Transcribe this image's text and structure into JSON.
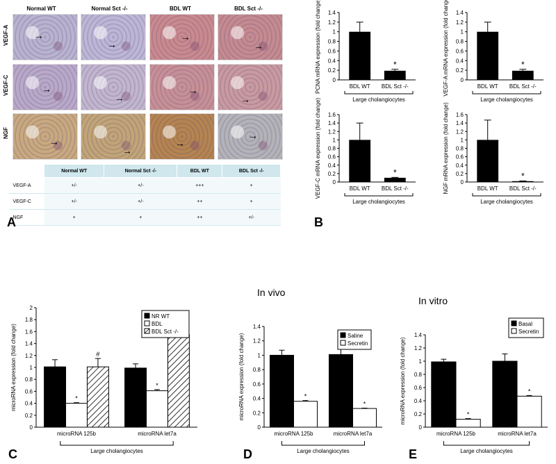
{
  "panels": {
    "A": "A",
    "B": "B",
    "C": "C",
    "D": "D",
    "E": "E"
  },
  "panel_a": {
    "columns": [
      "Normal WT",
      "Normal Sct -/-",
      "BDL WT",
      "BDL Sct -/-"
    ],
    "rows": [
      "VEGF-A",
      "VEGF-C",
      "NGF"
    ],
    "images": [
      [
        "#b9b3cf",
        "#bdb7d5",
        "#c98a8e",
        "#c58b90"
      ],
      [
        "#b9a9c8",
        "#c2b6cf",
        "#c79096",
        "#c99aa0"
      ],
      [
        "#c9a97f",
        "#c2a577",
        "#b58450",
        "#b4b3b8"
      ]
    ],
    "table": {
      "headers": [
        "",
        "Normal WT",
        "Normal Sct -/-",
        "BDL WT",
        "BDL Sct -/-"
      ],
      "rows": [
        [
          "VEGF-A",
          "+/-",
          "+/-",
          "+++",
          "+"
        ],
        [
          "VEGF-C",
          "+/-",
          "+/-",
          "++",
          "+"
        ],
        [
          "NGF",
          "+",
          "+",
          "++",
          "+/-"
        ]
      ]
    }
  },
  "chart_data": [
    {
      "panel": "B",
      "type": "bar",
      "categories": [
        "BDL WT",
        "BDL Sct -/-"
      ],
      "values": [
        1.0,
        0.19
      ],
      "errors": [
        0.2,
        0.03
      ],
      "significance": [
        "",
        "*"
      ],
      "ylabel": "PCNA mRNA expression (fold change)",
      "group_label": "Large cholangiocytes",
      "ylim": [
        0,
        1.4
      ],
      "yticks": [
        "0",
        "0.2",
        "0.4",
        "0.6",
        "0.8",
        "1",
        "1.2",
        "1.4"
      ]
    },
    {
      "panel": "B",
      "type": "bar",
      "categories": [
        "BDL WT",
        "BDL Sct -/-"
      ],
      "values": [
        1.0,
        0.19
      ],
      "errors": [
        0.2,
        0.03
      ],
      "significance": [
        "",
        "*"
      ],
      "ylabel": "VEGF-A mRNA expression (fold change)",
      "group_label": "Large cholangiocytes",
      "ylim": [
        0,
        1.4
      ],
      "yticks": [
        "0",
        "0.2",
        "0.4",
        "0.6",
        "0.8",
        "1",
        "1.2",
        "1.4"
      ]
    },
    {
      "panel": "B",
      "type": "bar",
      "categories": [
        "BDL WT",
        "BDL Sct -/-"
      ],
      "values": [
        1.0,
        0.1
      ],
      "errors": [
        0.4,
        0.01
      ],
      "significance": [
        "",
        "*"
      ],
      "ylabel": "VEGF-C mRNA expression (fold change)",
      "group_label": "Large cholangiocytes",
      "ylim": [
        0,
        1.6
      ],
      "yticks": [
        "0",
        "0.2",
        "0.4",
        "0.6",
        "0.8",
        "1",
        "1.2",
        "1.4",
        "1.6"
      ]
    },
    {
      "panel": "B",
      "type": "bar",
      "categories": [
        "BDL WT",
        "BDL Sct -/-"
      ],
      "values": [
        1.0,
        0.02
      ],
      "errors": [
        0.47,
        0.005
      ],
      "significance": [
        "",
        "*"
      ],
      "ylabel": "NGF mRNA expression (fold change)",
      "group_label": "Large cholangiocytes",
      "ylim": [
        0,
        1.6
      ],
      "yticks": [
        "0",
        "0.2",
        "0.4",
        "0.6",
        "0.8",
        "1",
        "1.2",
        "1.4",
        "1.6"
      ]
    },
    {
      "panel": "C",
      "type": "bar",
      "categories": [
        "microRNA 125b",
        "microRNA let7a"
      ],
      "series": [
        {
          "name": "NR WT",
          "values": [
            1.01,
            0.99
          ],
          "errors": [
            0.12,
            0.07
          ],
          "significance": [
            "",
            ""
          ]
        },
        {
          "name": "BDL",
          "values": [
            0.4,
            0.61
          ],
          "errors": [
            0.01,
            0.02
          ],
          "significance": [
            "*",
            "*"
          ]
        },
        {
          "name": "BDL Sct -/-",
          "values": [
            1.01,
            1.55
          ],
          "errors": [
            0.14,
            0.2
          ],
          "significance": [
            "#",
            "#"
          ]
        }
      ],
      "ylabel": "microRNA expression (fold change)",
      "group_label": "Large cholangiocytes",
      "ylim": [
        0,
        2
      ],
      "yticks": [
        "0",
        "0.2",
        "0.4",
        "0.6",
        "0.8",
        "1",
        "1.2",
        "1.4",
        "1.6",
        "1.8",
        "2"
      ],
      "legend": "top-right"
    },
    {
      "panel": "D",
      "type": "bar",
      "title": "In vivo",
      "categories": [
        "microRNA 125b",
        "microRNA let7a"
      ],
      "series": [
        {
          "name": "Saline",
          "values": [
            1.0,
            1.01
          ],
          "errors": [
            0.07,
            0.12
          ],
          "significance": [
            "",
            ""
          ]
        },
        {
          "name": "Secretin",
          "values": [
            0.36,
            0.26
          ],
          "errors": [
            0.01,
            0.005
          ],
          "significance": [
            "*",
            "*"
          ]
        }
      ],
      "ylabel": "microRNA expression (fold change)",
      "group_label": "Large cholangiocytes",
      "ylim": [
        0,
        1.4
      ],
      "yticks": [
        "0",
        "0.2",
        "0.4",
        "0.6",
        "0.8",
        "1",
        "1.2",
        "1.4"
      ],
      "legend": "top-right"
    },
    {
      "panel": "E",
      "type": "bar",
      "title": "In vitro",
      "categories": [
        "microRNA 125b",
        "microRNA let7a"
      ],
      "series": [
        {
          "name": "Basal",
          "values": [
            0.99,
            1.0
          ],
          "errors": [
            0.04,
            0.11
          ],
          "significance": [
            "",
            ""
          ]
        },
        {
          "name": "Secretin",
          "values": [
            0.12,
            0.47
          ],
          "errors": [
            0.01,
            0.01
          ],
          "significance": [
            "*",
            "*"
          ]
        }
      ],
      "ylabel": "microRNA expression (fold change)",
      "group_label": "Large cholangiocytes",
      "ylim": [
        0,
        1.4
      ],
      "yticks": [
        "0",
        "0.2",
        "0.4",
        "0.6",
        "0.8",
        "1",
        "1.2",
        "1.4"
      ],
      "legend": "top-right"
    }
  ]
}
